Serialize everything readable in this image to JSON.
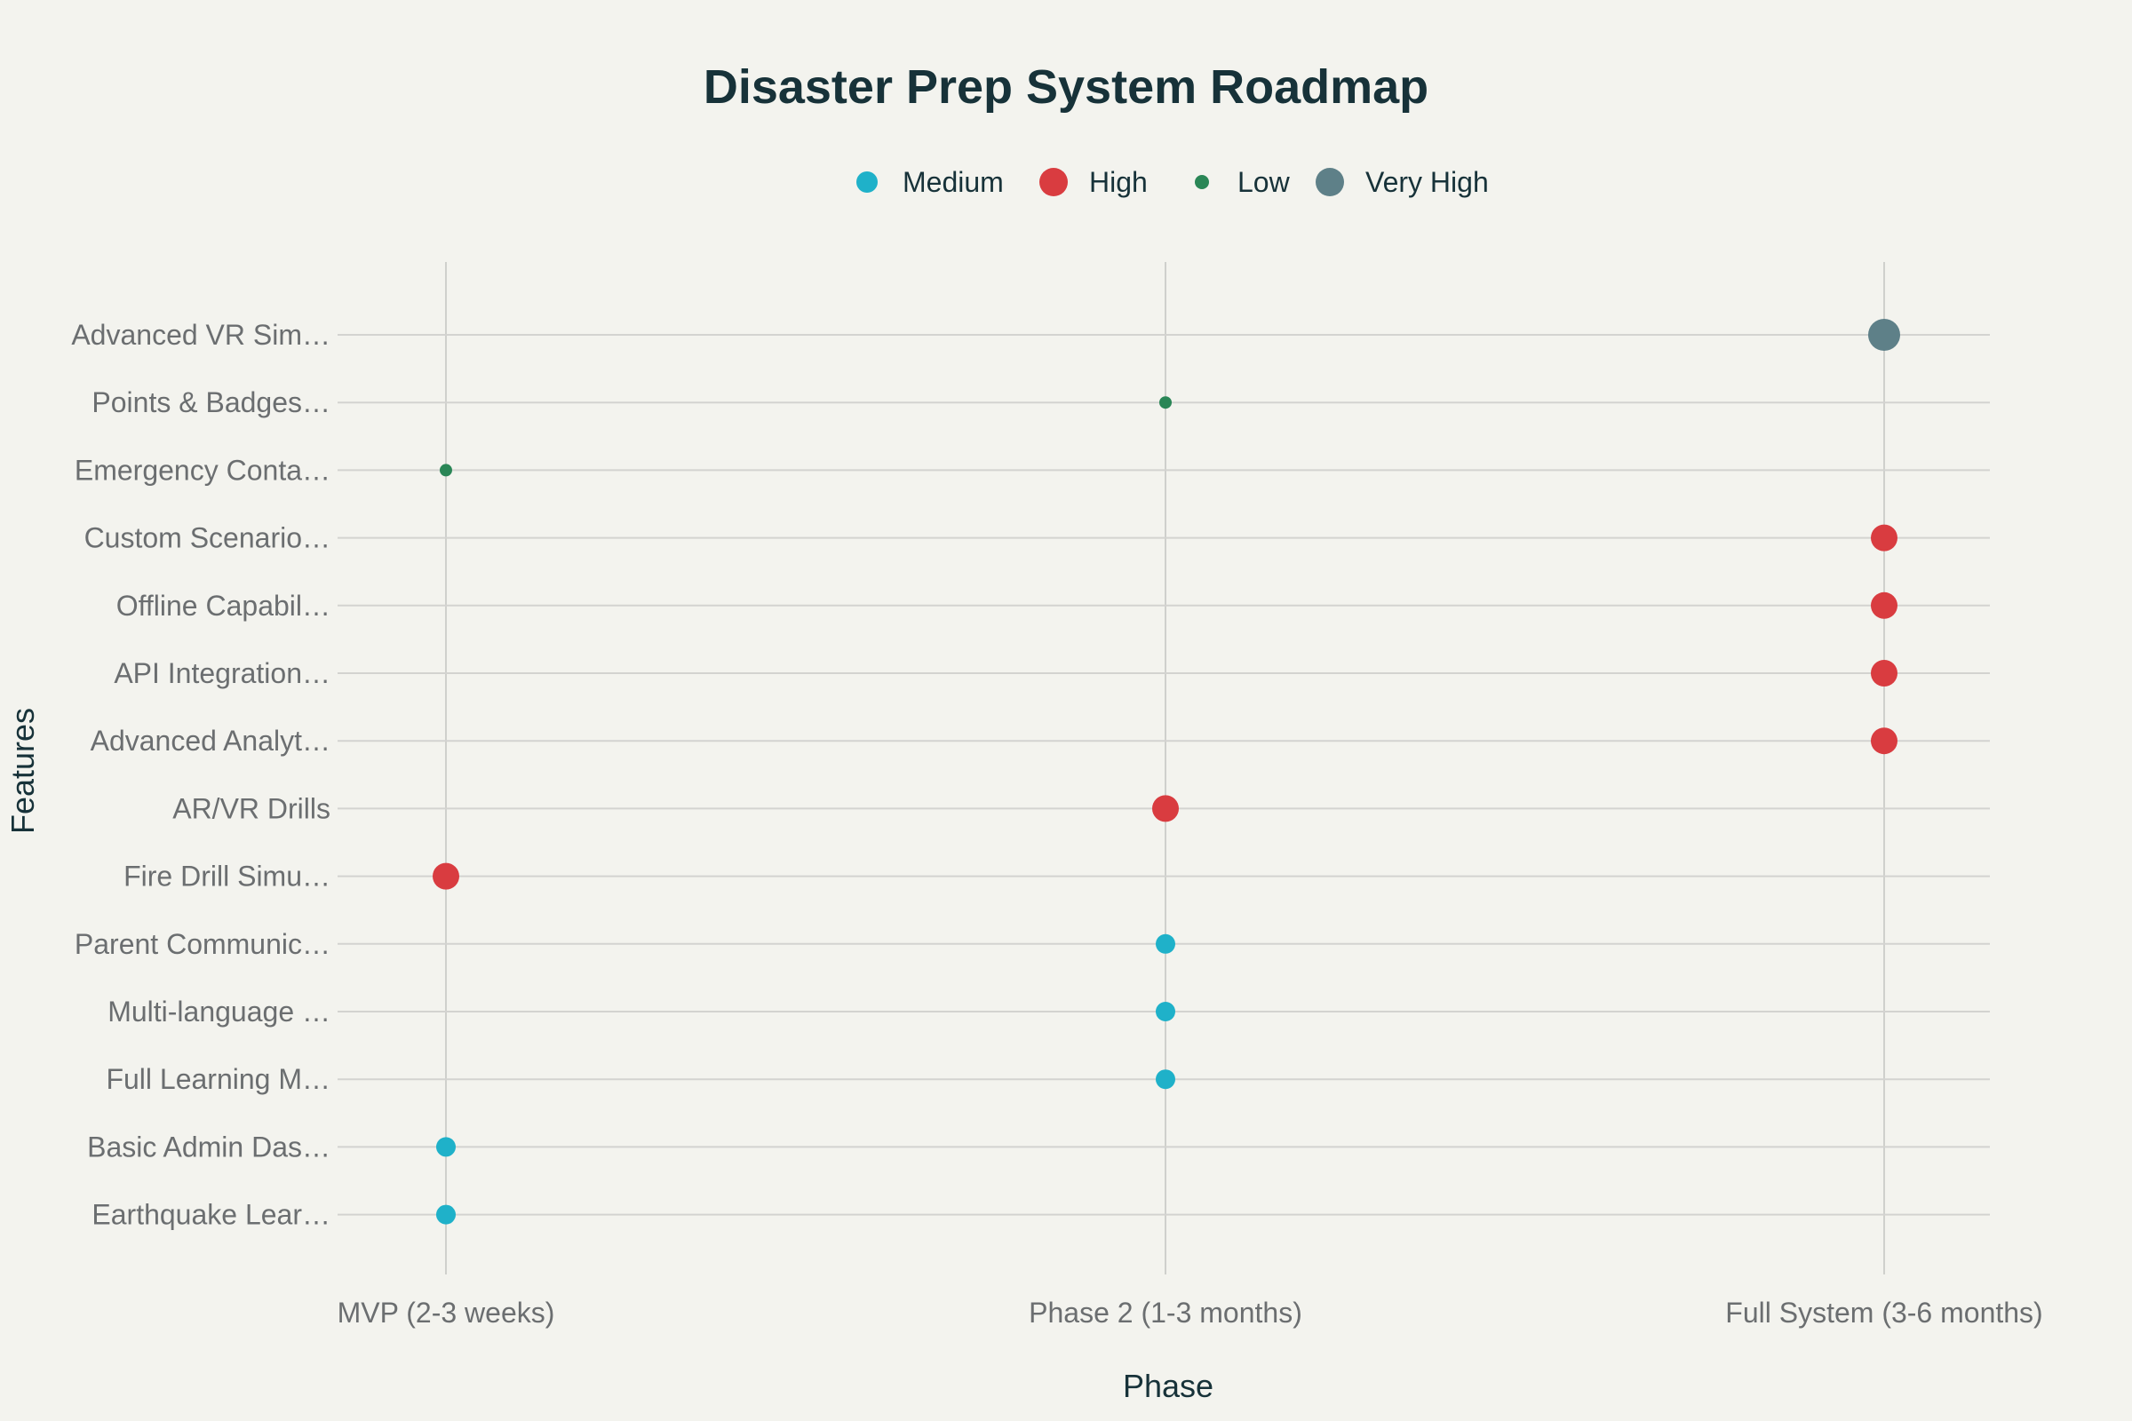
{
  "chart_data": {
    "type": "scatter",
    "title": "Disaster Prep System Roadmap",
    "xlabel": "Phase",
    "ylabel": "Features",
    "x_categories": [
      "MVP (2-3 weeks)",
      "Phase 2 (1-3 months)",
      "Full System (3-6 months)"
    ],
    "y_categories": [
      "Earthquake Lear…",
      "Basic Admin Das…",
      "Full Learning M…",
      "Multi-language …",
      "Parent Communic…",
      "Fire Drill Simu…",
      "AR/VR Drills",
      "Advanced Analyt…",
      "API Integration…",
      "Offline Capabil…",
      "Custom Scenario…",
      "Emergency Conta…",
      "Points & Badges…",
      "Advanced VR Sim…"
    ],
    "legend_position": "top-center",
    "grid": true,
    "series": [
      {
        "name": "Medium",
        "color": "#1fb1c9",
        "points": [
          {
            "x": "MVP (2-3 weeks)",
            "y": "Earthquake Lear…"
          },
          {
            "x": "MVP (2-3 weeks)",
            "y": "Basic Admin Das…"
          },
          {
            "x": "Phase 2 (1-3 months)",
            "y": "Full Learning M…"
          },
          {
            "x": "Phase 2 (1-3 months)",
            "y": "Multi-language …"
          },
          {
            "x": "Phase 2 (1-3 months)",
            "y": "Parent Communic…"
          }
        ]
      },
      {
        "name": "High",
        "color": "#d93c40",
        "points": [
          {
            "x": "MVP (2-3 weeks)",
            "y": "Fire Drill Simu…"
          },
          {
            "x": "Phase 2 (1-3 months)",
            "y": "AR/VR Drills"
          },
          {
            "x": "Full System (3-6 months)",
            "y": "Advanced Analyt…"
          },
          {
            "x": "Full System (3-6 months)",
            "y": "API Integration…"
          },
          {
            "x": "Full System (3-6 months)",
            "y": "Offline Capabil…"
          },
          {
            "x": "Full System (3-6 months)",
            "y": "Custom Scenario…"
          }
        ]
      },
      {
        "name": "Low",
        "color": "#2a8656",
        "points": [
          {
            "x": "MVP (2-3 weeks)",
            "y": "Emergency Conta…"
          },
          {
            "x": "Phase 2 (1-3 months)",
            "y": "Points & Badges…"
          }
        ]
      },
      {
        "name": "Very High",
        "color": "#5e8088",
        "points": [
          {
            "x": "Full System (3-6 months)",
            "y": "Advanced VR Sim…"
          }
        ]
      }
    ]
  }
}
